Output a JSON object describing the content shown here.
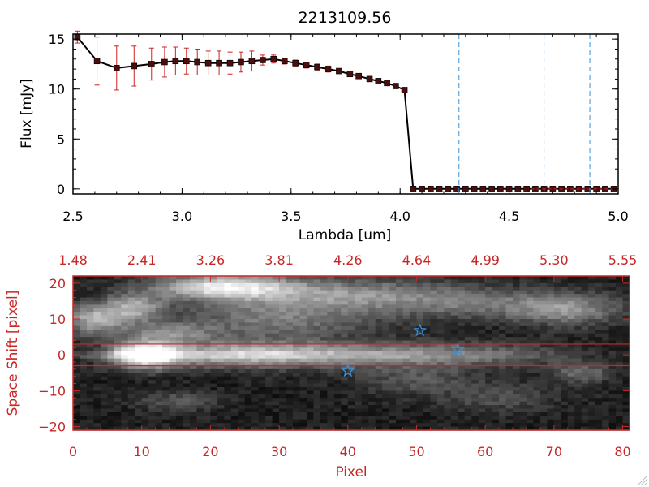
{
  "colors": {
    "axis_black": "#000000",
    "axis_red": "#c62828",
    "errorbar": "#cc2222",
    "marker": "#4a0e0e",
    "dashed": "#3a8fd6",
    "star": "#3a8fd6",
    "roi": "#c62828"
  },
  "chart_data": [
    {
      "type": "line",
      "title": "2213109.56",
      "xlabel": "Lambda [um]",
      "ylabel": "Flux [mJy]",
      "xlim": [
        2.5,
        5.0
      ],
      "ylim": [
        -0.5,
        15.5
      ],
      "x_ticks": [
        2.5,
        3.0,
        3.5,
        4.0,
        4.5,
        5.0
      ],
      "x_tick_labels": [
        "2.5",
        "3.0",
        "3.5",
        "4.0",
        "4.5",
        "5.0"
      ],
      "y_ticks": [
        0,
        5,
        10,
        15
      ],
      "y_tick_labels": [
        "0",
        "5",
        "10",
        "15"
      ],
      "series": [
        {
          "name": "flux",
          "x": [
            2.52,
            2.61,
            2.7,
            2.78,
            2.86,
            2.92,
            2.97,
            3.02,
            3.07,
            3.12,
            3.17,
            3.22,
            3.27,
            3.32,
            3.37,
            3.42,
            3.47,
            3.52,
            3.57,
            3.62,
            3.67,
            3.72,
            3.77,
            3.81,
            3.86,
            3.9,
            3.94,
            3.98,
            4.02,
            4.06,
            4.1,
            4.14,
            4.18,
            4.22,
            4.26,
            4.3,
            4.34,
            4.38,
            4.42,
            4.46,
            4.5,
            4.54,
            4.58,
            4.62,
            4.66,
            4.7,
            4.74,
            4.78,
            4.82,
            4.86,
            4.9,
            4.94,
            4.98
          ],
          "y": [
            15.2,
            12.8,
            12.1,
            12.3,
            12.5,
            12.7,
            12.8,
            12.8,
            12.7,
            12.6,
            12.6,
            12.6,
            12.7,
            12.8,
            12.9,
            13.0,
            12.8,
            12.6,
            12.4,
            12.2,
            12.0,
            11.8,
            11.5,
            11.3,
            11.0,
            10.8,
            10.6,
            10.3,
            9.9,
            0.0,
            0.0,
            0.0,
            0.0,
            0.0,
            0.0,
            0.0,
            0.0,
            0.0,
            0.0,
            0.0,
            0.0,
            0.0,
            0.0,
            0.0,
            0.0,
            0.0,
            0.0,
            0.0,
            0.0,
            0.0,
            0.0,
            0.0,
            0.0
          ],
          "yerr": [
            0.6,
            2.4,
            2.2,
            2.0,
            1.6,
            1.5,
            1.4,
            1.3,
            1.3,
            1.2,
            1.2,
            1.1,
            1.0,
            1.0,
            0.5,
            0.4,
            0.3,
            0.3,
            0.3,
            0.3,
            0.3,
            0.2,
            0.2,
            0.2,
            0.2,
            0.2,
            0.2,
            0.2,
            0.2,
            0,
            0,
            0,
            0,
            0,
            0,
            0,
            0,
            0,
            0,
            0,
            0,
            0,
            0,
            0,
            0,
            0,
            0,
            0,
            0,
            0,
            0,
            0,
            0
          ]
        }
      ],
      "vertical_lines_x": [
        4.27,
        4.66,
        4.87
      ],
      "zero_dash_from_x": 4.6
    },
    {
      "type": "heatmap",
      "xlabel": "Pixel",
      "ylabel": "Space Shift [pixel]",
      "xlim": [
        0,
        81
      ],
      "ylim": [
        -21,
        22
      ],
      "x_ticks": [
        0,
        10,
        20,
        30,
        40,
        50,
        60,
        70,
        80
      ],
      "x_tick_labels": [
        "0",
        "10",
        "20",
        "30",
        "40",
        "50",
        "60",
        "70",
        "80"
      ],
      "y_ticks": [
        -20,
        -10,
        0,
        10,
        20
      ],
      "y_tick_labels": [
        "−20",
        "−10",
        "0",
        "10",
        "20"
      ],
      "top_axis_ticks": [
        0,
        10,
        20,
        30,
        40,
        50,
        60,
        70,
        80
      ],
      "top_axis_labels": [
        "1.48",
        "2.41",
        "3.26",
        "3.81",
        "4.26",
        "4.64",
        "4.99",
        "5.30",
        "5.55"
      ],
      "region_lines_y": [
        3,
        -3
      ],
      "stars": [
        {
          "x": 40,
          "y": -4.5
        },
        {
          "x": 50.5,
          "y": 6.8
        },
        {
          "x": 56,
          "y": 1.5
        }
      ],
      "blobs": [
        {
          "x": 10.5,
          "y": 0,
          "amp": 1.0,
          "sx": 3.5,
          "sy": 2.5
        },
        {
          "x": 24,
          "y": 0,
          "amp": 0.55,
          "sx": 9,
          "sy": 2.5
        },
        {
          "x": 42,
          "y": 0,
          "amp": 0.38,
          "sx": 11,
          "sy": 2.5
        },
        {
          "x": 60,
          "y": 0,
          "amp": 0.22,
          "sx": 10,
          "sy": 2.5
        },
        {
          "x": 22,
          "y": 19,
          "amp": 0.75,
          "sx": 7,
          "sy": 2.5
        },
        {
          "x": 40,
          "y": 17,
          "amp": 0.4,
          "sx": 12,
          "sy": 3
        },
        {
          "x": 62,
          "y": 14,
          "amp": 0.3,
          "sx": 12,
          "sy": 3
        },
        {
          "x": 3,
          "y": 10,
          "amp": 0.55,
          "sx": 3,
          "sy": 3
        },
        {
          "x": 9,
          "y": 13,
          "amp": 0.5,
          "sx": 3,
          "sy": 3
        },
        {
          "x": 30,
          "y": 10,
          "amp": 0.35,
          "sx": 10,
          "sy": 4
        },
        {
          "x": 14,
          "y": 6,
          "amp": 0.35,
          "sx": 5,
          "sy": 2
        },
        {
          "x": 72,
          "y": 12,
          "amp": 0.3,
          "sx": 5,
          "sy": 3
        },
        {
          "x": 74,
          "y": -5,
          "amp": 0.3,
          "sx": 3,
          "sy": 2
        },
        {
          "x": 50,
          "y": -7,
          "amp": 0.2,
          "sx": 6,
          "sy": 3
        },
        {
          "x": 15,
          "y": -13,
          "amp": 0.22,
          "sx": 4,
          "sy": 2
        },
        {
          "x": 62,
          "y": -12,
          "amp": 0.18,
          "sx": 6,
          "sy": 3
        }
      ]
    }
  ]
}
